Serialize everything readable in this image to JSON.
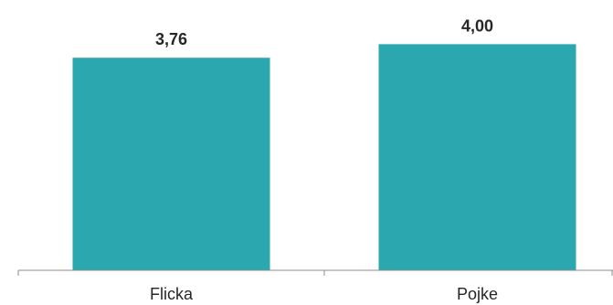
{
  "chart_data": {
    "type": "bar",
    "title": "",
    "xlabel": "",
    "ylabel": "",
    "categories": [
      "Flicka",
      "Pojke"
    ],
    "values": [
      3.76,
      4.0
    ],
    "data_labels": [
      "3,76",
      "4,00"
    ],
    "ylim": [
      0,
      4.2
    ],
    "grid": false,
    "legend": "none",
    "bar_color": "#2aa7af",
    "axis_color": "#8c8c8c",
    "text_color": "#262626"
  }
}
